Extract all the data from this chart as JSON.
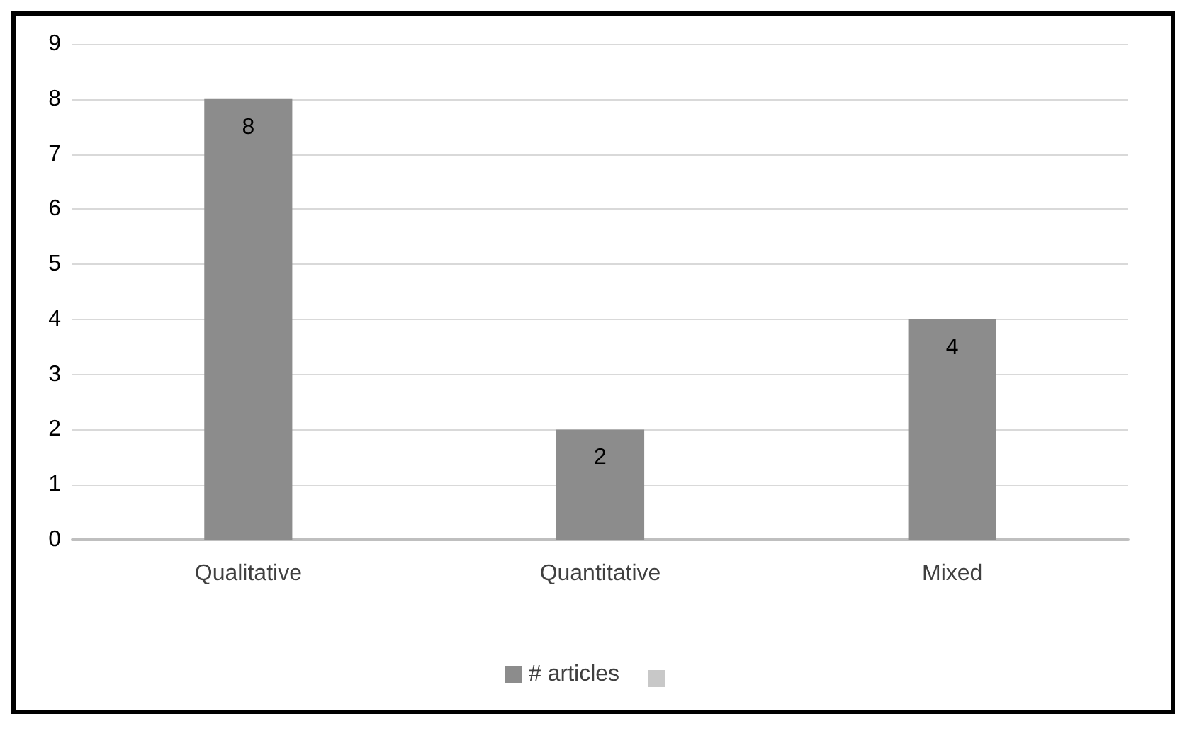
{
  "chart_data": {
    "type": "bar",
    "categories": [
      "Qualitative",
      "Quantitative",
      "Mixed"
    ],
    "series": [
      {
        "name": "# articles",
        "color": "#8c8c8c",
        "values": [
          8,
          2,
          4
        ]
      }
    ],
    "ylim": [
      0,
      9
    ],
    "yticks": [
      0,
      1,
      2,
      3,
      4,
      5,
      6,
      7,
      8,
      9
    ],
    "grid": "y",
    "legend": "bottom",
    "data_labels": true
  }
}
